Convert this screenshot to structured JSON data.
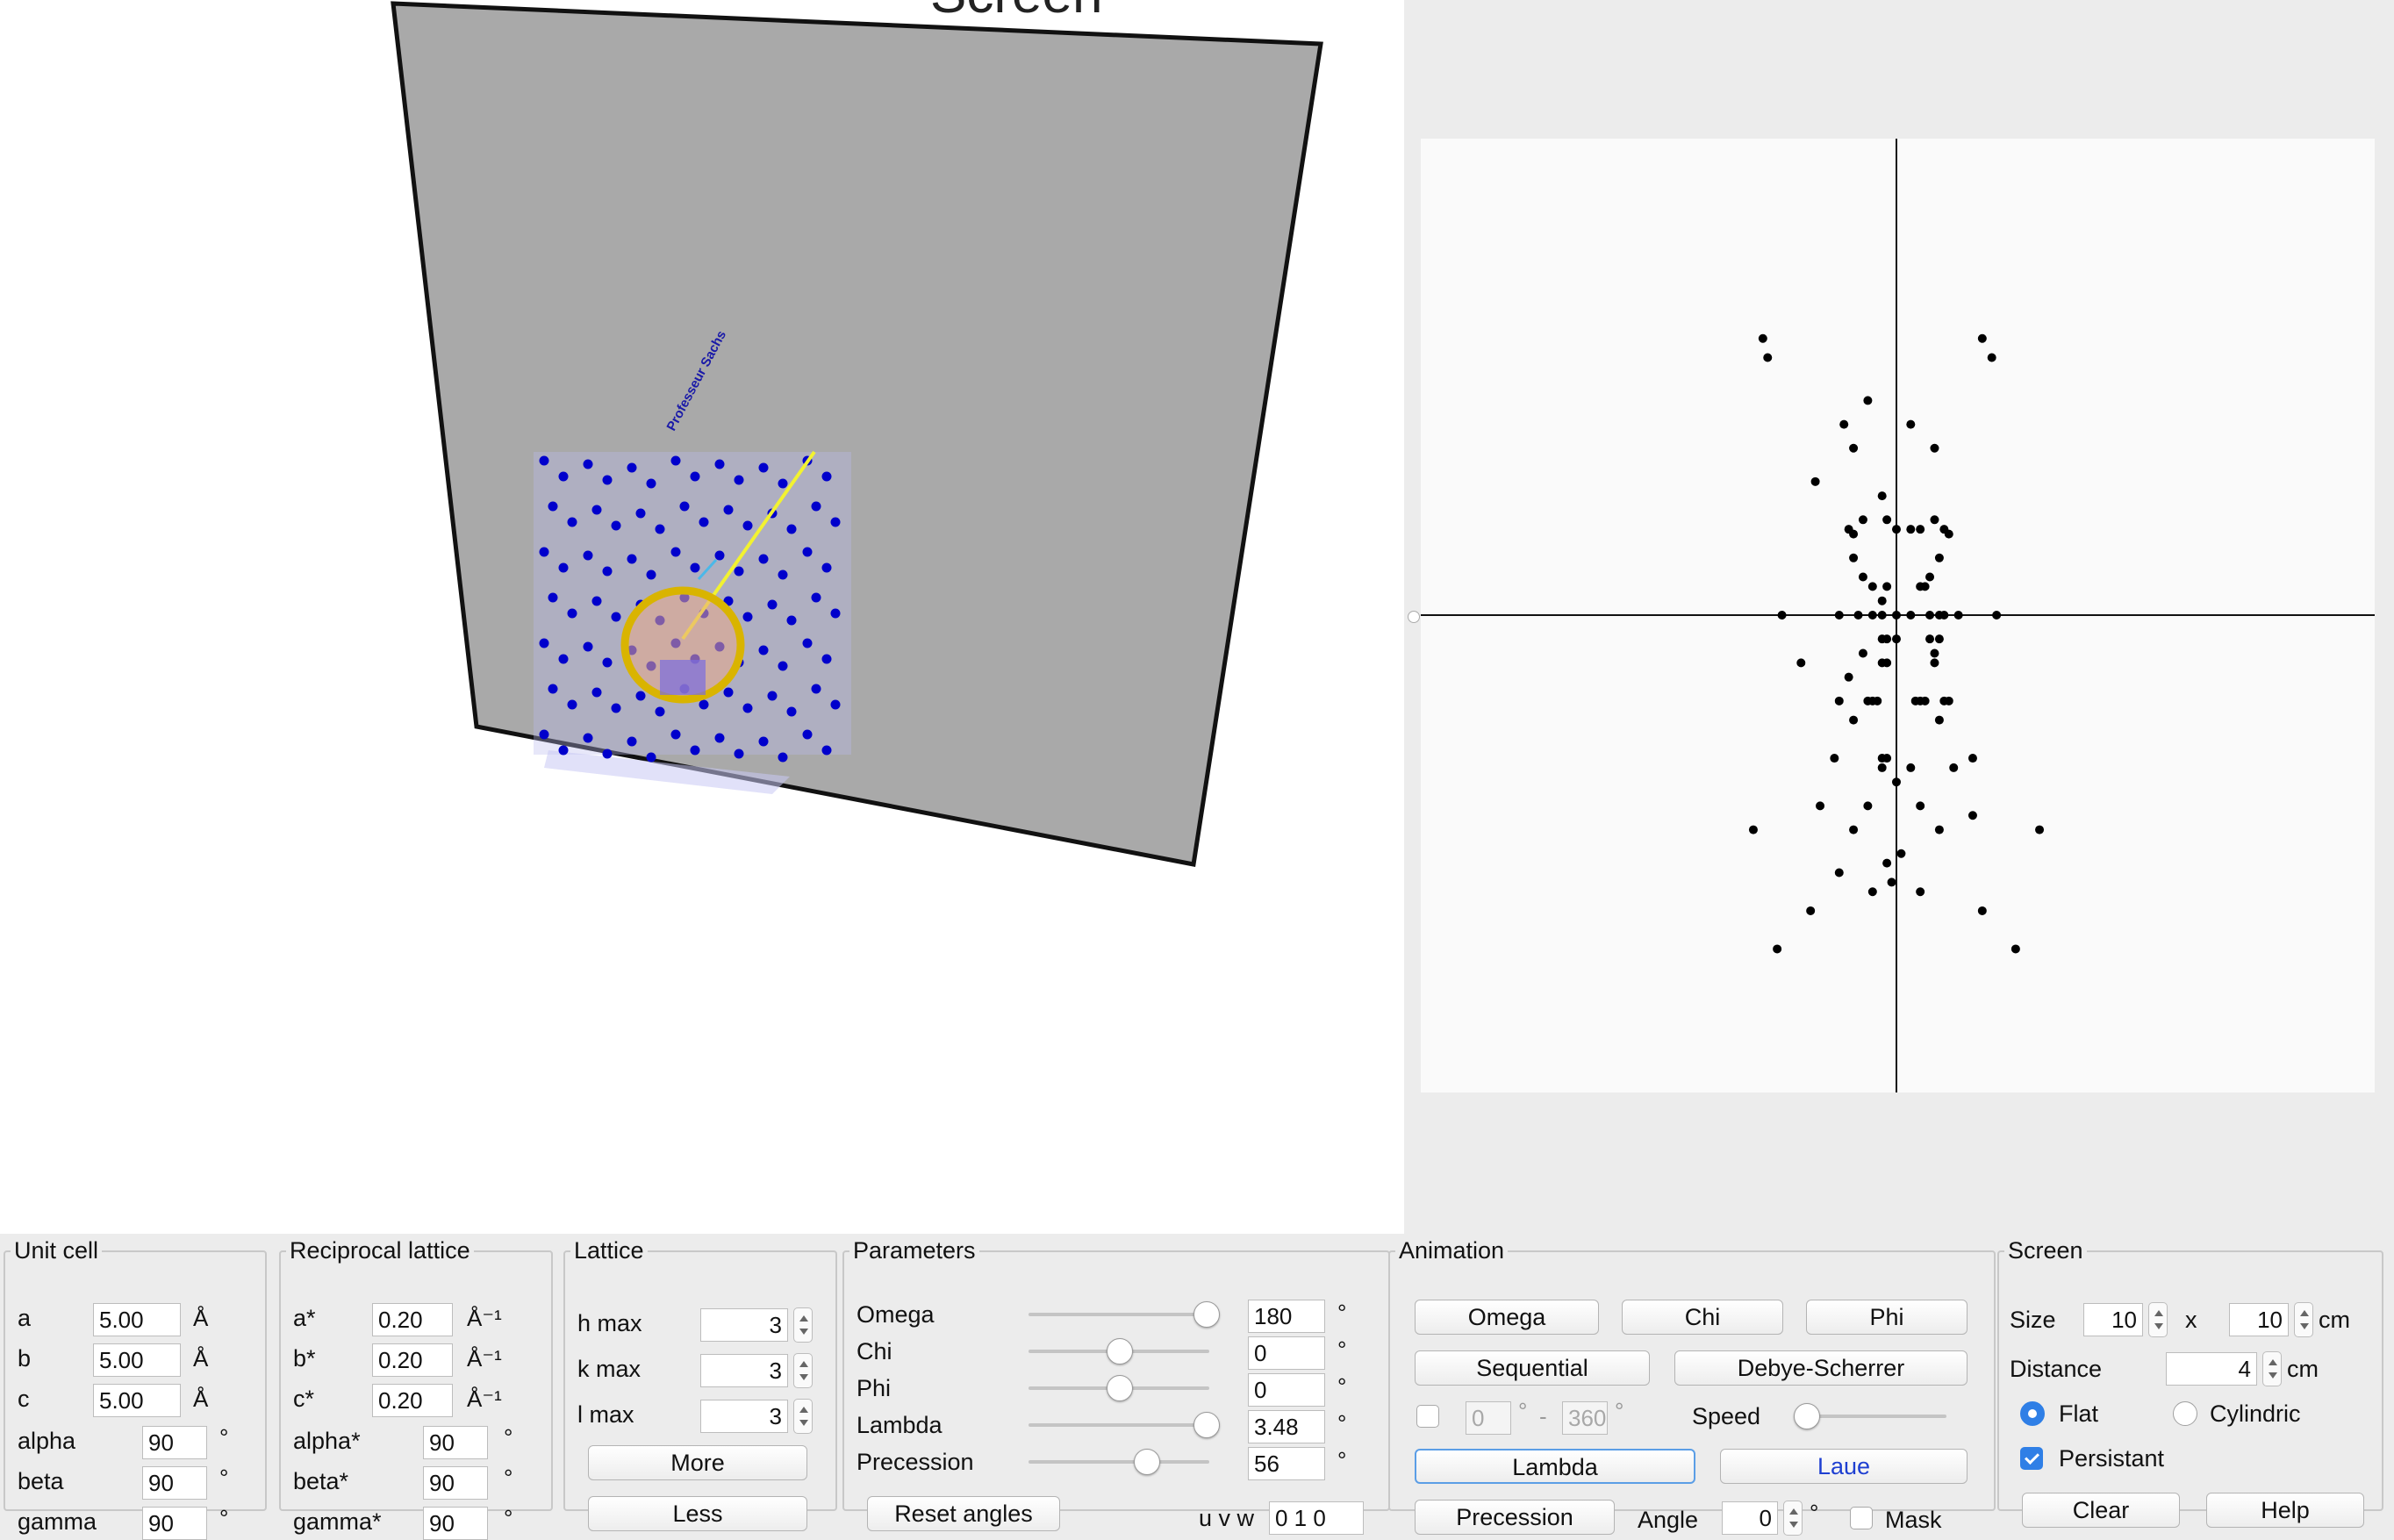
{
  "colors": {
    "screen_gray": "#a9a9a9",
    "lattice_blue": "#0000cc",
    "beam_yellow": "#ffff33",
    "ring_gold": "#d4b200",
    "accent_blue": "#2f7fe6",
    "spot": "#000000"
  },
  "view3d": {
    "screen_title_fragment": "Screen",
    "vertical_label": "Professeur Sachs"
  },
  "detector": {
    "spots": [
      [
        -27,
        -54
      ],
      [
        -28,
        -58
      ],
      [
        -17,
        -28
      ],
      [
        20,
        -54
      ],
      [
        18,
        -58
      ],
      [
        -6,
        -45
      ],
      [
        3,
        -40
      ],
      [
        -9,
        -35
      ],
      [
        -11,
        -40
      ],
      [
        8,
        -35
      ],
      [
        -7,
        -20
      ],
      [
        8,
        -20
      ],
      [
        -3,
        -25
      ],
      [
        -2,
        -20
      ],
      [
        0,
        -18
      ],
      [
        -10,
        -18
      ],
      [
        -9,
        -17
      ],
      [
        3,
        -18
      ],
      [
        5,
        -18
      ],
      [
        10,
        -18
      ],
      [
        11,
        -17
      ],
      [
        -9,
        -12
      ],
      [
        9,
        -12
      ],
      [
        -7,
        -8
      ],
      [
        7,
        -8
      ],
      [
        -5,
        -6
      ],
      [
        -2,
        -6
      ],
      [
        -3,
        -3
      ],
      [
        5,
        -6
      ],
      [
        6,
        -6
      ],
      [
        -24,
        0
      ],
      [
        -12,
        0
      ],
      [
        -8,
        0
      ],
      [
        -5,
        0
      ],
      [
        -3,
        0
      ],
      [
        0,
        0
      ],
      [
        3,
        0
      ],
      [
        7,
        0
      ],
      [
        9,
        0
      ],
      [
        10,
        0
      ],
      [
        13,
        0
      ],
      [
        21,
        0
      ],
      [
        -3,
        5
      ],
      [
        -2,
        5
      ],
      [
        0,
        5
      ],
      [
        7,
        5
      ],
      [
        9,
        5
      ],
      [
        -7,
        8
      ],
      [
        8,
        8
      ],
      [
        -3,
        10
      ],
      [
        -2,
        10
      ],
      [
        8,
        10
      ],
      [
        -20,
        10
      ],
      [
        -10,
        13
      ],
      [
        -12,
        18
      ],
      [
        10,
        18
      ],
      [
        -6,
        18
      ],
      [
        -5,
        18
      ],
      [
        -4,
        18
      ],
      [
        4,
        18
      ],
      [
        5,
        18
      ],
      [
        6,
        18
      ],
      [
        11,
        18
      ],
      [
        -9,
        22
      ],
      [
        9,
        22
      ],
      [
        -13,
        30
      ],
      [
        -3,
        32
      ],
      [
        -3,
        30
      ],
      [
        -2,
        30
      ],
      [
        0,
        35
      ],
      [
        3,
        32
      ],
      [
        12,
        32
      ],
      [
        16,
        30
      ],
      [
        -16,
        40
      ],
      [
        -6,
        40
      ],
      [
        -9,
        45
      ],
      [
        9,
        45
      ],
      [
        5,
        40
      ],
      [
        16,
        42
      ],
      [
        -12,
        54
      ],
      [
        -30,
        45
      ],
      [
        30,
        45
      ],
      [
        -18,
        62
      ],
      [
        18,
        62
      ],
      [
        -25,
        70
      ],
      [
        25,
        70
      ],
      [
        -2,
        52
      ],
      [
        -1,
        56
      ],
      [
        1,
        50
      ],
      [
        -5,
        58
      ],
      [
        5,
        58
      ]
    ]
  },
  "unit_cell": {
    "title": "Unit cell",
    "rows": [
      {
        "label": "a",
        "value": "5.00",
        "unit": "Å"
      },
      {
        "label": "b",
        "value": "5.00",
        "unit": "Å"
      },
      {
        "label": "c",
        "value": "5.00",
        "unit": "Å"
      },
      {
        "label": "alpha",
        "value": "90",
        "unit": "°"
      },
      {
        "label": "beta",
        "value": "90",
        "unit": "°"
      },
      {
        "label": "gamma",
        "value": "90",
        "unit": "°"
      }
    ]
  },
  "reciprocal": {
    "title": "Reciprocal lattice",
    "rows": [
      {
        "label": "a*",
        "value": "0.20",
        "unit": "Å⁻¹"
      },
      {
        "label": "b*",
        "value": "0.20",
        "unit": "Å⁻¹"
      },
      {
        "label": "c*",
        "value": "0.20",
        "unit": "Å⁻¹"
      },
      {
        "label": "alpha*",
        "value": "90",
        "unit": "°"
      },
      {
        "label": "beta*",
        "value": "90",
        "unit": "°"
      },
      {
        "label": "gamma*",
        "value": "90",
        "unit": "°"
      }
    ]
  },
  "lattice": {
    "title": "Lattice",
    "h_label": "h max",
    "h_value": "3",
    "k_label": "k max",
    "k_value": "3",
    "l_label": "l  max",
    "l_value": "3",
    "more_label": "More",
    "less_label": "Less"
  },
  "parameters": {
    "title": "Parameters",
    "rows": [
      {
        "label": "Omega",
        "value": "180",
        "unit": "°",
        "slider": 0.98
      },
      {
        "label": "Chi",
        "value": "0",
        "unit": "°",
        "slider": 0.5
      },
      {
        "label": "Phi",
        "value": "0",
        "unit": "°",
        "slider": 0.5
      },
      {
        "label": "Lambda",
        "value": "3.48",
        "unit": "°",
        "slider": 0.98
      },
      {
        "label": "Precession",
        "value": "56",
        "unit": "°",
        "slider": 0.65
      }
    ],
    "reset_label": "Reset angles",
    "uvw_label": "u v w",
    "uvw_value": "0 1 0"
  },
  "animation": {
    "title": "Animation",
    "omega_label": "Omega",
    "chi_label": "Chi",
    "phi_label": "Phi",
    "sequential_label": "Sequential",
    "debye_label": "Debye-Scherrer",
    "range_from": "0",
    "range_deg1": "°",
    "range_dash": "-",
    "range_to": "360",
    "range_deg2": "°",
    "speed_label": "Speed",
    "speed_level": 0.0,
    "lambda_label": "Lambda",
    "laue_label": "Laue",
    "precession_label": "Precession",
    "angle_label": "Angle",
    "angle_value": "0",
    "angle_unit": "°",
    "mask_label": "Mask"
  },
  "screen": {
    "title": "Screen",
    "size_label": "Size",
    "size_w": "10",
    "size_x": "x",
    "size_h": "10",
    "size_unit": "cm",
    "distance_label": "Distance",
    "distance_value": "4",
    "distance_unit": "cm",
    "flat_label": "Flat",
    "cylindric_label": "Cylindric",
    "persistant_label": "Persistant",
    "clear_label": "Clear",
    "help_label": "Help"
  }
}
